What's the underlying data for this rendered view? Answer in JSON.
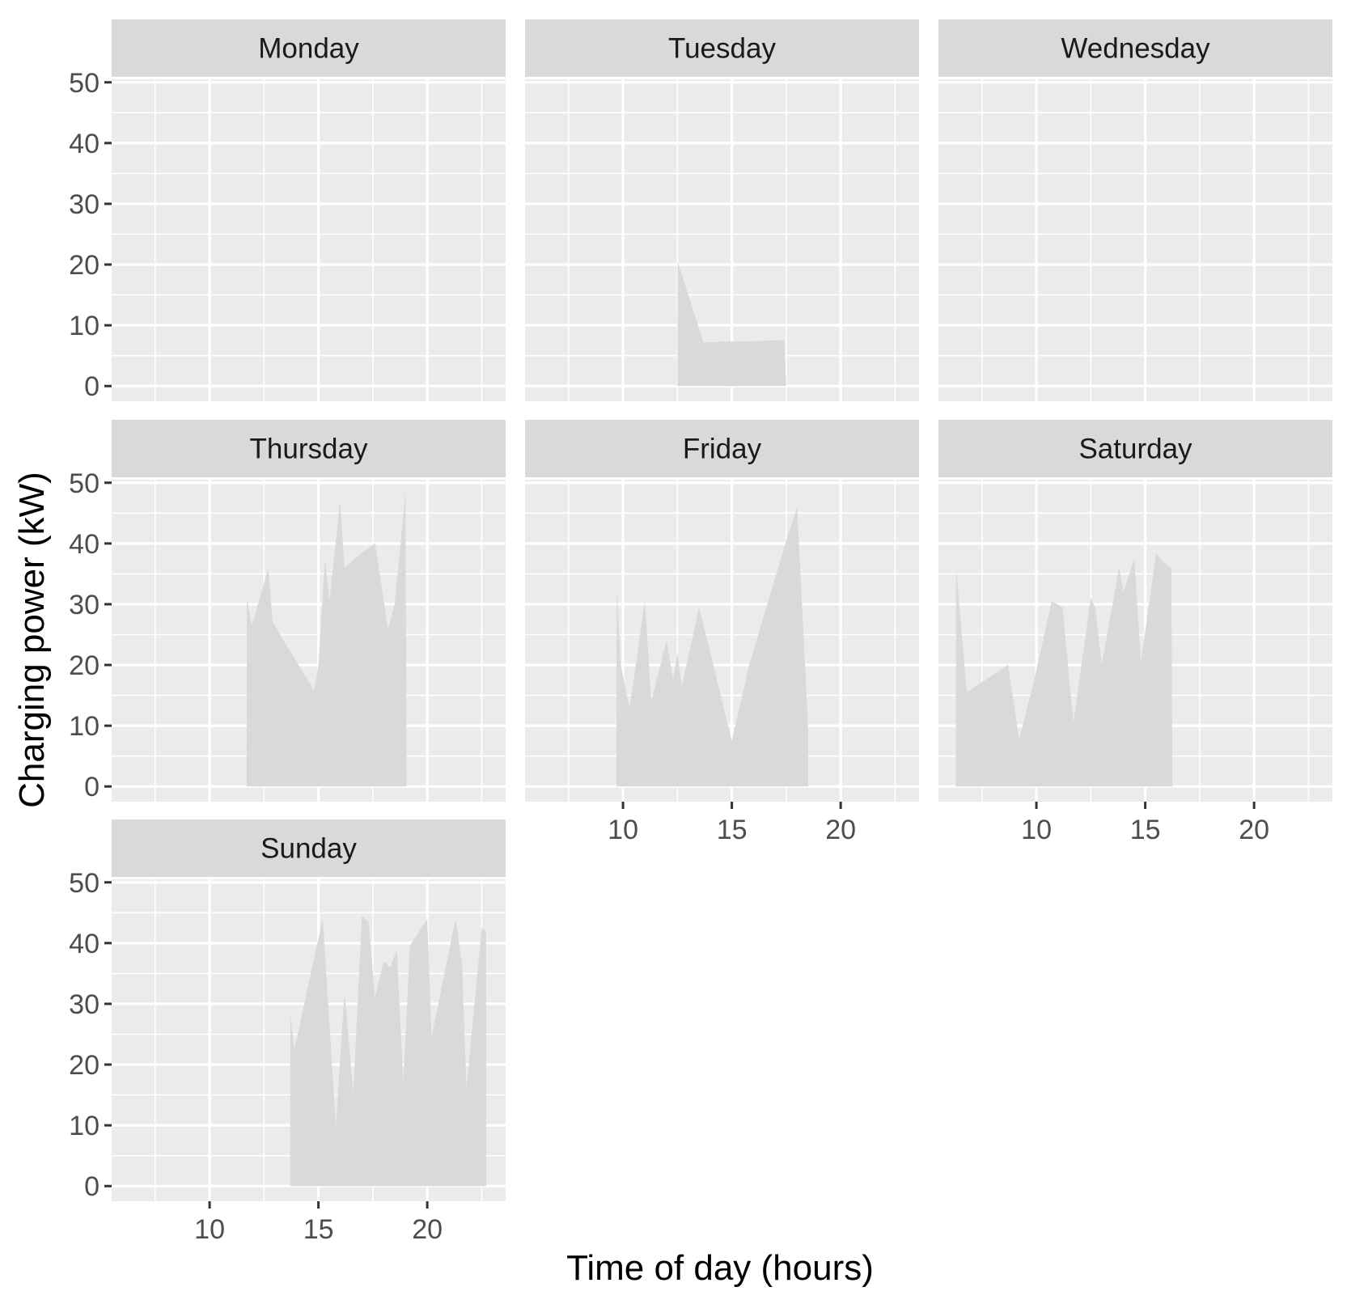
{
  "chart_data": {
    "type": "area",
    "xlabel": "Time of day (hours)",
    "ylabel": "Charging power (kW)",
    "xlim": [
      5.5,
      23.6
    ],
    "ylim": [
      -2.5,
      50.5
    ],
    "x_ticks": [
      10,
      15,
      20
    ],
    "y_ticks": [
      0,
      10,
      20,
      30,
      40,
      50
    ],
    "grid": true,
    "legend": "none",
    "colors": {
      "panel_bg": "#ebebeb",
      "strip_bg": "#d9d9d9",
      "grid": "#ffffff",
      "fill": "#d9d9d9"
    },
    "panels": [
      {
        "name": "Monday",
        "x": [],
        "y": []
      },
      {
        "name": "Tuesday",
        "x": [
          12.5,
          12.51,
          13.7,
          14.5,
          16.0,
          17.4,
          17.5
        ],
        "y": [
          0,
          20.5,
          7.2,
          7.3,
          7.4,
          7.6,
          0
        ]
      },
      {
        "name": "Wednesday",
        "x": [],
        "y": []
      },
      {
        "name": "Thursday",
        "x": [
          11.7,
          11.71,
          11.95,
          12.7,
          12.9,
          14.8,
          15.0,
          15.3,
          15.5,
          16.0,
          16.2,
          17.0,
          17.6,
          18.2,
          18.5,
          19.0,
          19.05
        ],
        "y": [
          0,
          31,
          26.5,
          36,
          27,
          15.8,
          20,
          37.5,
          30.5,
          47,
          36,
          38.5,
          40,
          26,
          30,
          48.5,
          0
        ]
      },
      {
        "name": "Friday",
        "x": [
          9.7,
          9.71,
          9.9,
          10.3,
          11.0,
          11.3,
          12.0,
          12.3,
          12.5,
          12.7,
          13.5,
          15.0,
          15.8,
          17.5,
          18.0,
          18.5,
          18.51
        ],
        "y": [
          0,
          32.5,
          20,
          12.8,
          30.5,
          14,
          24,
          17.5,
          22,
          16.5,
          29.5,
          7.5,
          20,
          40.5,
          46,
          10,
          0
        ]
      },
      {
        "name": "Saturday",
        "x": [
          6.3,
          6.31,
          6.8,
          8.7,
          9.2,
          9.9,
          10.7,
          11.2,
          11.7,
          12.5,
          12.7,
          13.0,
          13.8,
          14.0,
          14.5,
          14.8,
          15.0,
          15.5,
          15.8,
          16.2,
          16.25
        ],
        "y": [
          0,
          36,
          15.5,
          20,
          7.8,
          17.5,
          30.5,
          29.5,
          10.5,
          31,
          29.5,
          20,
          36,
          32,
          37.5,
          20.5,
          25.5,
          38.5,
          37,
          36,
          0
        ]
      },
      {
        "name": "Sunday",
        "x": [
          13.7,
          13.71,
          13.9,
          14.8,
          15.2,
          15.8,
          16.2,
          16.6,
          17.0,
          17.3,
          17.6,
          18.0,
          18.3,
          18.6,
          18.9,
          19.2,
          20.0,
          20.2,
          21.3,
          21.6,
          21.8,
          22.5,
          22.7,
          22.71
        ],
        "y": [
          0,
          28,
          22.5,
          37.5,
          44,
          10,
          32,
          15.5,
          44.5,
          43.5,
          31,
          37,
          36,
          39,
          17,
          39.5,
          44,
          24.5,
          44,
          36.5,
          16,
          42.5,
          42,
          0
        ]
      }
    ]
  }
}
